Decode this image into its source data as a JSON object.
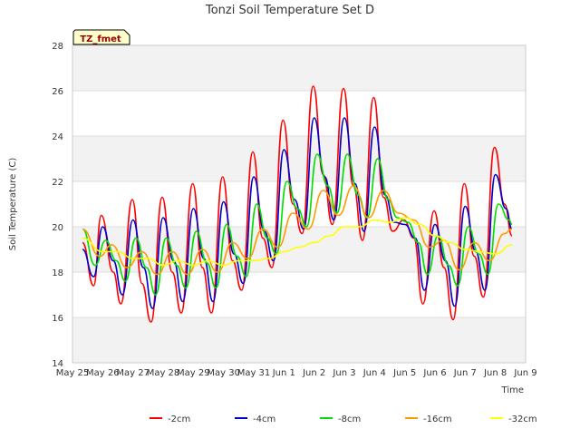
{
  "chart_data": {
    "type": "line",
    "title": "Tonzi Soil Temperature Set D",
    "xlabel": "Time",
    "ylabel": "Soil Temperature (C)",
    "annotation": "TZ_fmet",
    "x_ticks": [
      "May 25",
      "May 26",
      "May 27",
      "May 28",
      "May 29",
      "May 30",
      "May 31",
      "Jun 1",
      "Jun 2",
      "Jun 3",
      "Jun 4",
      "Jun 5",
      "Jun 6",
      "Jun 7",
      "Jun 8",
      "Jun 9"
    ],
    "y_ticks": [
      14,
      16,
      18,
      20,
      22,
      24,
      26,
      28
    ],
    "xlim": [
      0,
      15
    ],
    "ylim": [
      14,
      28
    ],
    "grid": true,
    "legend_position": "bottom",
    "x_units": "days since May 25",
    "series": [
      {
        "name": "-2cm",
        "color": "#ff0000",
        "x": [
          0.33,
          0.7,
          0.95,
          1.35,
          1.6,
          1.98,
          2.3,
          2.6,
          2.97,
          3.3,
          3.6,
          3.98,
          4.3,
          4.6,
          4.97,
          5.3,
          5.6,
          5.97,
          6.3,
          6.6,
          6.97,
          7.3,
          7.6,
          7.97,
          8.3,
          8.6,
          8.97,
          9.3,
          9.6,
          9.97,
          10.3,
          10.6,
          10.97,
          11.3,
          11.6,
          11.97,
          12.3,
          12.6,
          12.97,
          13.3,
          13.6,
          13.97,
          14.3,
          14.55
        ],
        "y": [
          19.3,
          17.4,
          20.5,
          18.0,
          16.6,
          21.2,
          17.5,
          15.8,
          21.3,
          18.0,
          16.2,
          21.9,
          18.2,
          16.2,
          22.2,
          18.5,
          17.2,
          23.3,
          19.5,
          18.2,
          24.7,
          21.0,
          19.7,
          26.2,
          22.3,
          20.1,
          26.1,
          21.8,
          19.4,
          25.7,
          21.3,
          19.8,
          20.3,
          19.5,
          16.6,
          20.7,
          18.2,
          15.9,
          21.9,
          18.7,
          16.9,
          23.5,
          21.0,
          19.6
        ]
      },
      {
        "name": "-4cm",
        "color": "#0000cc",
        "x": [
          0.33,
          0.7,
          1.0,
          1.35,
          1.65,
          2.0,
          2.35,
          2.65,
          3.0,
          3.35,
          3.65,
          4.0,
          4.35,
          4.65,
          5.0,
          5.35,
          5.65,
          6.0,
          6.35,
          6.65,
          7.0,
          7.35,
          7.65,
          8.0,
          8.35,
          8.65,
          9.0,
          9.35,
          9.65,
          10.0,
          10.35,
          10.65,
          11.0,
          11.35,
          11.65,
          12.0,
          12.35,
          12.65,
          13.0,
          13.35,
          13.65,
          14.0,
          14.35,
          14.55
        ],
        "y": [
          19.0,
          17.8,
          20.0,
          18.5,
          17.0,
          20.3,
          18.2,
          16.4,
          20.4,
          18.5,
          16.7,
          20.8,
          18.6,
          16.7,
          21.1,
          18.8,
          17.5,
          22.2,
          19.8,
          18.5,
          23.4,
          21.2,
          19.9,
          24.8,
          22.2,
          20.3,
          24.8,
          21.9,
          19.8,
          24.4,
          21.4,
          20.2,
          20.1,
          19.5,
          17.2,
          20.1,
          18.5,
          16.5,
          20.9,
          18.9,
          17.2,
          22.3,
          20.8,
          19.9
        ]
      },
      {
        "name": "-8cm",
        "color": "#00dd00",
        "x": [
          0.33,
          0.75,
          1.1,
          1.45,
          1.75,
          2.1,
          2.45,
          2.75,
          3.1,
          3.45,
          3.75,
          4.1,
          4.45,
          4.75,
          5.1,
          5.45,
          5.75,
          6.1,
          6.45,
          6.75,
          7.1,
          7.45,
          7.75,
          8.1,
          8.45,
          8.75,
          9.1,
          9.45,
          9.75,
          10.1,
          10.45,
          10.75,
          11.1,
          11.45,
          11.75,
          12.1,
          12.45,
          12.75,
          13.1,
          13.45,
          13.75,
          14.1,
          14.45,
          14.55
        ],
        "y": [
          19.9,
          18.3,
          19.4,
          18.5,
          17.6,
          19.5,
          18.2,
          17.0,
          19.5,
          18.3,
          17.3,
          19.8,
          18.4,
          17.3,
          20.1,
          18.7,
          17.8,
          21.0,
          19.5,
          18.8,
          22.0,
          20.8,
          20.0,
          23.2,
          21.8,
          20.6,
          23.2,
          21.4,
          20.4,
          23.0,
          21.2,
          20.4,
          20.2,
          19.3,
          17.9,
          19.6,
          18.3,
          17.4,
          20.0,
          18.8,
          17.9,
          21.0,
          20.3,
          20.1
        ]
      },
      {
        "name": "-16cm",
        "color": "#ff9900",
        "x": [
          0.33,
          0.9,
          1.3,
          1.8,
          2.3,
          2.8,
          3.3,
          3.8,
          4.3,
          4.8,
          5.3,
          5.8,
          6.3,
          6.8,
          7.3,
          7.8,
          8.3,
          8.8,
          9.3,
          9.8,
          10.3,
          10.8,
          11.3,
          11.8,
          12.3,
          12.8,
          13.3,
          13.8,
          14.3,
          14.55
        ],
        "y": [
          19.9,
          18.7,
          19.2,
          18.2,
          18.9,
          17.9,
          18.9,
          17.9,
          19.0,
          18.0,
          19.3,
          18.6,
          19.9,
          19.1,
          20.6,
          19.9,
          21.6,
          20.5,
          21.8,
          20.4,
          21.6,
          20.6,
          20.3,
          19.1,
          19.4,
          18.1,
          19.3,
          18.5,
          19.7,
          19.9
        ]
      },
      {
        "name": "-32cm",
        "color": "#ffff00",
        "x": [
          0.33,
          1.0,
          1.5,
          2.0,
          2.5,
          3.0,
          3.5,
          4.0,
          4.5,
          5.0,
          5.5,
          6.0,
          6.5,
          7.0,
          7.5,
          8.0,
          8.5,
          9.0,
          9.5,
          10.0,
          10.5,
          11.0,
          11.5,
          12.0,
          12.5,
          13.0,
          13.5,
          14.0,
          14.55
        ],
        "y": [
          19.5,
          18.9,
          18.9,
          18.6,
          18.6,
          18.3,
          18.5,
          18.3,
          18.5,
          18.3,
          18.5,
          18.5,
          18.6,
          18.9,
          19.1,
          19.3,
          19.6,
          20.0,
          20.0,
          20.3,
          20.2,
          20.4,
          20.1,
          19.6,
          19.3,
          19.0,
          18.9,
          18.8,
          19.2
        ]
      }
    ]
  }
}
